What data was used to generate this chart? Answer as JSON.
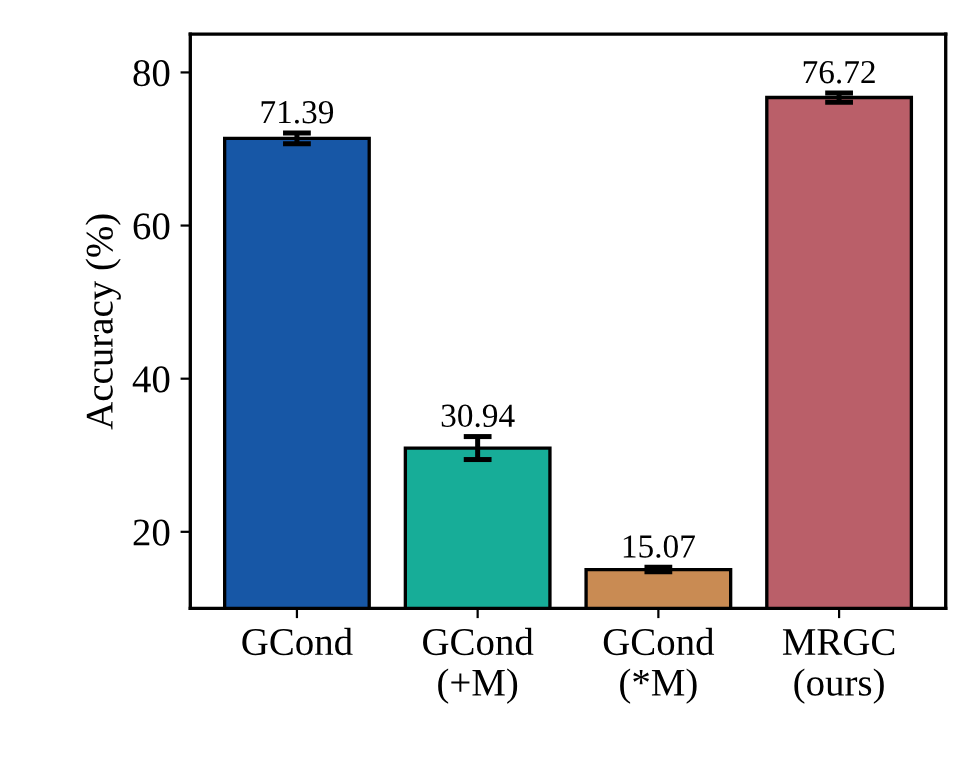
{
  "chart_data": {
    "type": "bar",
    "ylabel": "Accuracy (%)",
    "categories": [
      "GCond",
      "GCond\n(+M)",
      "GCond\n(*M)",
      "MRGC\n(ours)"
    ],
    "values": [
      71.39,
      30.94,
      15.07,
      76.72
    ],
    "errors": [
      0.7,
      1.5,
      0.3,
      0.6
    ],
    "colors": [
      "#1757a6",
      "#17ad98",
      "#c98b53",
      "#ba5f69"
    ],
    "ylim": [
      10,
      85
    ],
    "yticks": [
      20,
      40,
      60,
      80
    ],
    "data_labels": true,
    "grid": false,
    "legend": false
  }
}
